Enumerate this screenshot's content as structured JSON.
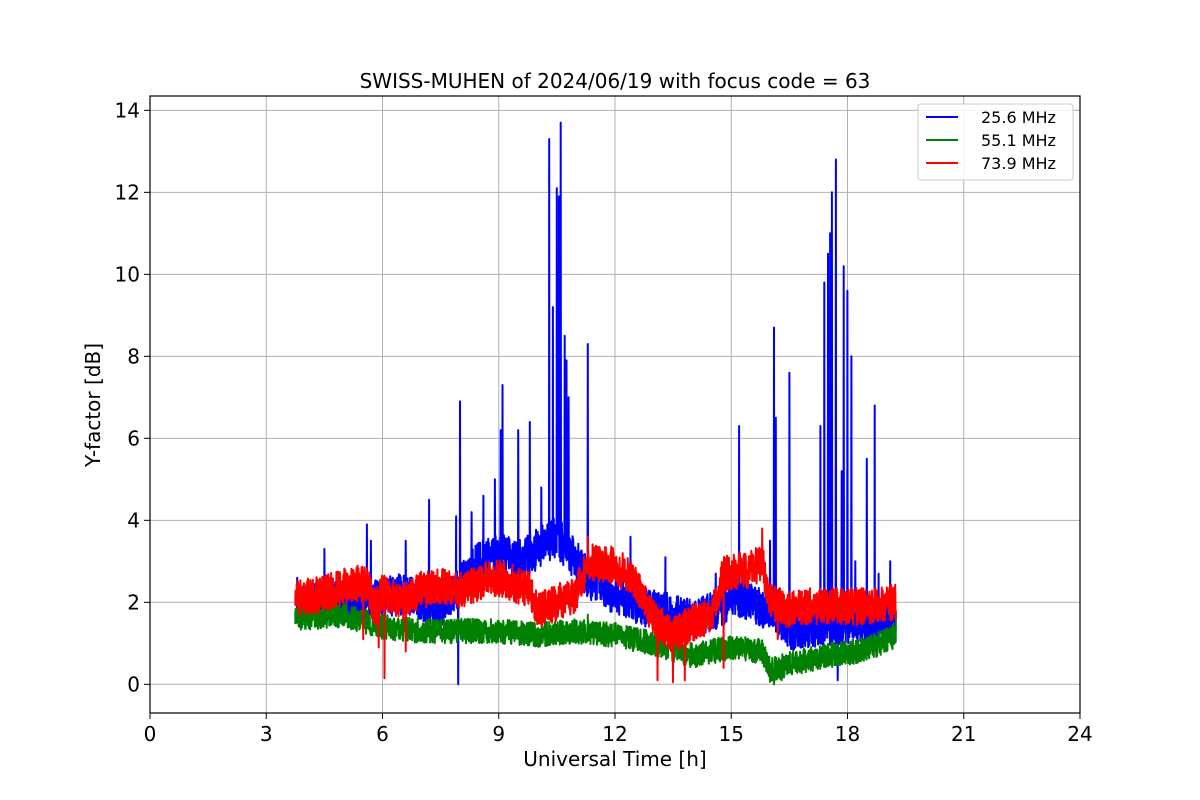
{
  "chart_data": {
    "type": "line",
    "title": "SWISS-MUHEN of 2024/06/19 with focus code = 63",
    "xlabel": "Universal Time [h]",
    "ylabel": "Y-factor [dB]",
    "xlim": [
      0,
      24
    ],
    "ylim": [
      -0.7,
      14.35
    ],
    "x_ticks": [
      0,
      3,
      6,
      9,
      12,
      15,
      18,
      21,
      24
    ],
    "y_ticks": [
      0,
      2,
      4,
      6,
      8,
      10,
      12,
      14
    ],
    "grid": true,
    "legend_position": "top-right",
    "series": [
      {
        "name": "25.6 MHz",
        "color": "#0000ff",
        "base": [
          [
            3.75,
            2.0
          ],
          [
            4.5,
            2.0
          ],
          [
            5.5,
            2.0
          ],
          [
            6.5,
            2.2
          ],
          [
            7.5,
            1.9
          ],
          [
            8.0,
            2.4
          ],
          [
            8.5,
            3.0
          ],
          [
            9.0,
            3.2
          ],
          [
            9.5,
            3.0
          ],
          [
            10.0,
            3.3
          ],
          [
            10.5,
            3.6
          ],
          [
            11.0,
            3.0
          ],
          [
            11.3,
            2.6
          ],
          [
            12.0,
            2.2
          ],
          [
            13.0,
            1.8
          ],
          [
            14.0,
            1.6
          ],
          [
            14.8,
            1.9
          ],
          [
            15.0,
            2.2
          ],
          [
            15.5,
            2.0
          ],
          [
            16.0,
            1.8
          ],
          [
            16.5,
            1.3
          ],
          [
            17.0,
            1.4
          ],
          [
            18.0,
            1.5
          ],
          [
            19.0,
            1.5
          ],
          [
            19.25,
            1.6
          ]
        ],
        "noise": 0.5,
        "spikes": [
          [
            3.8,
            2.6
          ],
          [
            4.3,
            2.6
          ],
          [
            4.5,
            3.3
          ],
          [
            5.6,
            3.9
          ],
          [
            5.7,
            3.5
          ],
          [
            6.6,
            3.5
          ],
          [
            7.2,
            4.5
          ],
          [
            7.9,
            4.1
          ],
          [
            7.95,
            0.0
          ],
          [
            8.0,
            6.9
          ],
          [
            8.3,
            4.2
          ],
          [
            8.6,
            4.6
          ],
          [
            8.9,
            5.0
          ],
          [
            9.05,
            6.2
          ],
          [
            9.1,
            7.3
          ],
          [
            9.5,
            6.2
          ],
          [
            9.8,
            6.4
          ],
          [
            10.1,
            4.8
          ],
          [
            10.3,
            13.3
          ],
          [
            10.4,
            9.2
          ],
          [
            10.5,
            12.1
          ],
          [
            10.55,
            11.9
          ],
          [
            10.6,
            13.7
          ],
          [
            10.7,
            8.5
          ],
          [
            10.75,
            7.9
          ],
          [
            10.8,
            7.0
          ],
          [
            11.3,
            8.3
          ],
          [
            12.4,
            3.6
          ],
          [
            13.3,
            3.1
          ],
          [
            14.6,
            2.7
          ],
          [
            15.2,
            6.3
          ],
          [
            16.0,
            3.5
          ],
          [
            16.1,
            8.7
          ],
          [
            16.15,
            6.5
          ],
          [
            16.5,
            7.6
          ],
          [
            17.3,
            6.3
          ],
          [
            17.4,
            9.8
          ],
          [
            17.5,
            10.5
          ],
          [
            17.55,
            11.0
          ],
          [
            17.6,
            12.0
          ],
          [
            17.7,
            12.8
          ],
          [
            17.75,
            0.1
          ],
          [
            17.85,
            5.2
          ],
          [
            17.9,
            10.2
          ],
          [
            18.0,
            9.6
          ],
          [
            18.1,
            8.0
          ],
          [
            18.2,
            3.0
          ],
          [
            18.5,
            5.5
          ],
          [
            18.7,
            6.8
          ],
          [
            18.8,
            2.7
          ],
          [
            19.1,
            3.0
          ]
        ]
      },
      {
        "name": "55.1 MHz",
        "color": "#008000",
        "base": [
          [
            3.75,
            1.6
          ],
          [
            5.0,
            1.7
          ],
          [
            6.0,
            1.4
          ],
          [
            7.0,
            1.3
          ],
          [
            8.0,
            1.3
          ],
          [
            9.0,
            1.3
          ],
          [
            10.0,
            1.2
          ],
          [
            11.0,
            1.3
          ],
          [
            12.0,
            1.2
          ],
          [
            13.0,
            1.0
          ],
          [
            14.0,
            0.7
          ],
          [
            15.0,
            0.9
          ],
          [
            15.8,
            0.8
          ],
          [
            16.0,
            0.35
          ],
          [
            16.5,
            0.5
          ],
          [
            17.5,
            0.7
          ],
          [
            18.5,
            0.85
          ],
          [
            19.25,
            1.2
          ]
        ],
        "noise": 0.3,
        "spikes": [
          [
            5.0,
            2.0
          ],
          [
            6.2,
            1.6
          ],
          [
            7.2,
            1.6
          ],
          [
            9.0,
            1.5
          ],
          [
            11.3,
            1.7
          ],
          [
            16.1,
            0.0
          ],
          [
            16.3,
            0.1
          ],
          [
            19.25,
            1.8
          ]
        ]
      },
      {
        "name": "73.9 MHz",
        "color": "#ff0000",
        "base": [
          [
            3.75,
            2.1
          ],
          [
            4.5,
            2.2
          ],
          [
            5.0,
            2.4
          ],
          [
            5.6,
            2.5
          ],
          [
            5.8,
            1.8
          ],
          [
            6.0,
            2.3
          ],
          [
            6.5,
            2.0
          ],
          [
            7.0,
            2.3
          ],
          [
            7.5,
            2.4
          ],
          [
            8.0,
            2.3
          ],
          [
            8.5,
            2.5
          ],
          [
            9.0,
            2.6
          ],
          [
            9.5,
            2.4
          ],
          [
            9.8,
            2.3
          ],
          [
            10.0,
            1.8
          ],
          [
            10.5,
            2.0
          ],
          [
            11.0,
            2.2
          ],
          [
            11.3,
            3.0
          ],
          [
            12.0,
            2.9
          ],
          [
            12.5,
            2.5
          ],
          [
            13.0,
            1.6
          ],
          [
            13.5,
            1.2
          ],
          [
            14.0,
            1.5
          ],
          [
            14.5,
            1.7
          ],
          [
            14.8,
            2.7
          ],
          [
            15.5,
            2.8
          ],
          [
            15.8,
            3.0
          ],
          [
            16.0,
            2.0
          ],
          [
            16.5,
            1.8
          ],
          [
            17.0,
            1.9
          ],
          [
            18.0,
            1.9
          ],
          [
            18.5,
            1.9
          ],
          [
            19.25,
            2.0
          ]
        ],
        "noise": 0.45,
        "spikes": [
          [
            5.5,
            1.1
          ],
          [
            5.9,
            0.9
          ],
          [
            6.05,
            0.15
          ],
          [
            6.6,
            0.8
          ],
          [
            11.3,
            3.6
          ],
          [
            12.2,
            3.2
          ],
          [
            13.1,
            0.1
          ],
          [
            13.5,
            0.05
          ],
          [
            13.8,
            0.1
          ],
          [
            14.8,
            0.4
          ],
          [
            15.8,
            3.8
          ],
          [
            16.2,
            1.1
          ]
        ]
      }
    ]
  }
}
